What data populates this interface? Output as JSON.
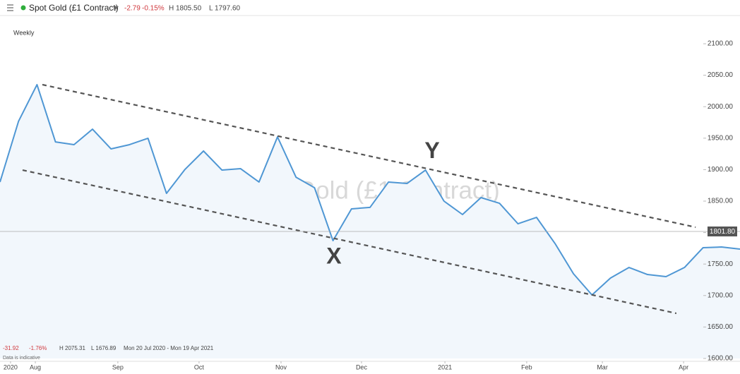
{
  "header": {
    "title": "Spot Gold (£1 Contract)",
    "change": "-2.79",
    "change_pct": "-0.15%",
    "high": "H 1805.50",
    "low": "L 1797.60"
  },
  "chart_data": {
    "type": "line",
    "interval": "Weekly",
    "watermark": "Spot Gold (£1 Contract)",
    "x": [
      0,
      1,
      2,
      3,
      4,
      5,
      6,
      7,
      8,
      9,
      10,
      11,
      12,
      13,
      14,
      15,
      16,
      17,
      18,
      19,
      20,
      21,
      22,
      23,
      24,
      25,
      26,
      27,
      28,
      29,
      30,
      31,
      32,
      33,
      34,
      35,
      36,
      37,
      38,
      39,
      40
    ],
    "series": [
      {
        "name": "Spot Gold (£1 Contract)",
        "color": "#4f97d4",
        "values": [
          1880.3,
          1976.7,
          2035,
          1944,
          1939.7,
          1964.3,
          1933,
          1939.7,
          1949.8,
          1862.3,
          1900.4,
          1929.6,
          1899.3,
          1901.6,
          1880.3,
          1952,
          1888,
          1871.3,
          1787.2,
          1837.7,
          1840,
          1880.3,
          1878,
          1899.3,
          1850,
          1828.7,
          1855.6,
          1846.6,
          1814,
          1824.2,
          1782.7,
          1734.5,
          1700.9,
          1727.8,
          1744.6,
          1733.4,
          1730,
          1744.6,
          1776,
          1777.1,
          1773.7
        ]
      }
    ],
    "xlim": [
      0,
      40
    ],
    "xticks": [
      {
        "value": 0.57,
        "label": "2020"
      },
      {
        "value": 1.91,
        "label": "Aug"
      },
      {
        "value": 6.37,
        "label": "Sep"
      },
      {
        "value": 10.76,
        "label": "Oct"
      },
      {
        "value": 15.19,
        "label": "Nov"
      },
      {
        "value": 19.54,
        "label": "Dec"
      },
      {
        "value": 24.05,
        "label": "2021"
      },
      {
        "value": 28.47,
        "label": "Feb"
      },
      {
        "value": 32.56,
        "label": "Mar"
      },
      {
        "value": 36.95,
        "label": "Apr"
      }
    ],
    "ylim": [
      1600,
      2100
    ],
    "yticks": [
      {
        "value": 1600,
        "label": "1600.00"
      },
      {
        "value": 1650,
        "label": "1650.00"
      },
      {
        "value": 1700,
        "label": "1700.00"
      },
      {
        "value": 1750,
        "label": "1750.00"
      },
      {
        "value": 1800,
        "label": "1800.00"
      },
      {
        "value": 1850,
        "label": "1850.00"
      },
      {
        "value": 1900,
        "label": "1900.00"
      },
      {
        "value": 1950,
        "label": "1950.00"
      },
      {
        "value": 2000,
        "label": "2000.00"
      },
      {
        "value": 2050,
        "label": "2050.00"
      },
      {
        "value": 2100,
        "label": "2100.00"
      }
    ],
    "current_price": {
      "value": 1801.8,
      "label": "1801.80"
    },
    "trendlines": [
      {
        "x": [
          2.29,
          37.6
        ],
        "y": [
          2035,
          1808.5
        ]
      },
      {
        "x": [
          1.22,
          36.56
        ],
        "y": [
          1899.3,
          1671.7
        ]
      }
    ],
    "annotations": [
      {
        "text": "X",
        "x": 18.05,
        "y": 1760
      },
      {
        "text": "Y",
        "x": 23.36,
        "y": 1928
      }
    ],
    "footer": {
      "change": "-31.92",
      "change_pct": "-1.76%",
      "high": "H 2075.31",
      "low": "L 1676.89",
      "range": "Mon 20 Jul 2020 - Mon 19 Apr 2021",
      "note": "Data is indicative"
    }
  }
}
